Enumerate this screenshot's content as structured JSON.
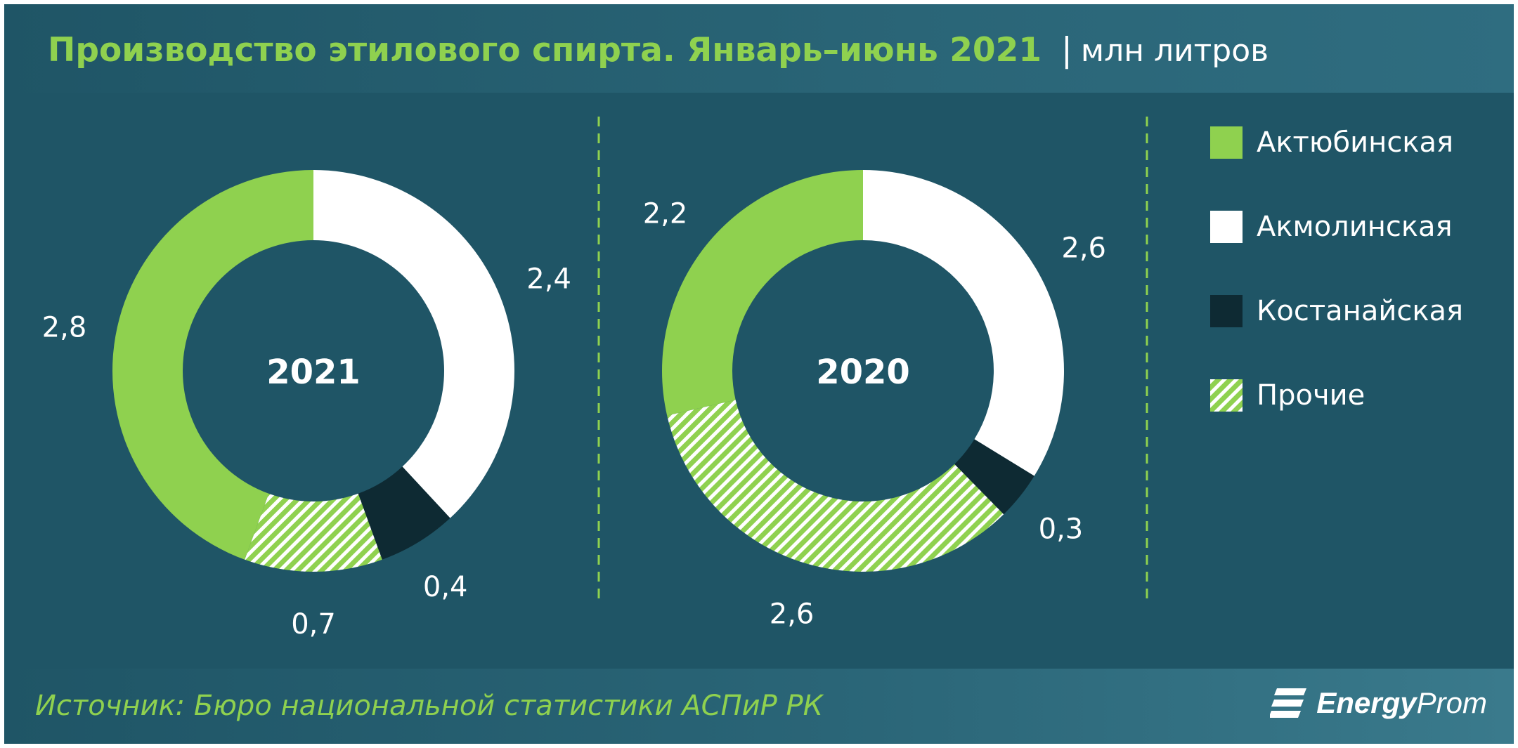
{
  "header": {
    "title": "Производство этилового спирта. Январь–июнь 2021",
    "separator": "|",
    "unit": "млн литров"
  },
  "colors": {
    "background": "#1f5566",
    "title": "#8fd14f",
    "aktobe": "#8fd14f",
    "akmola": "#ffffff",
    "kostanay": "#0e2a33",
    "other_hatch": "#8fd14f"
  },
  "chart_data": [
    {
      "type": "pie",
      "center_label": "2021",
      "categories": [
        "Актюбинская",
        "Акмолинская",
        "Костанайская",
        "Прочие"
      ],
      "values": [
        2.8,
        2.4,
        0.4,
        0.7
      ],
      "value_labels": [
        "2,8",
        "2,4",
        "0,4",
        "0,7"
      ]
    },
    {
      "type": "pie",
      "center_label": "2020",
      "categories": [
        "Актюбинская",
        "Акмолинская",
        "Костанайская",
        "Прочие"
      ],
      "values": [
        2.2,
        2.6,
        0.3,
        2.6
      ],
      "value_labels": [
        "2,2",
        "2,6",
        "0,3",
        "2,6"
      ]
    }
  ],
  "legend": [
    {
      "label": "Актюбинская",
      "color": "#8fd14f",
      "pattern": "solid"
    },
    {
      "label": "Акмолинская",
      "color": "#ffffff",
      "pattern": "solid"
    },
    {
      "label": "Костанайская",
      "color": "#0e2a33",
      "pattern": "solid"
    },
    {
      "label": "Прочие",
      "color": "#8fd14f",
      "pattern": "hatch"
    }
  ],
  "footer": {
    "source": "Источник: Бюро национальной  статистики АСПиР РК",
    "logo_text_bold": "Energy",
    "logo_text_rest": "Prom"
  }
}
